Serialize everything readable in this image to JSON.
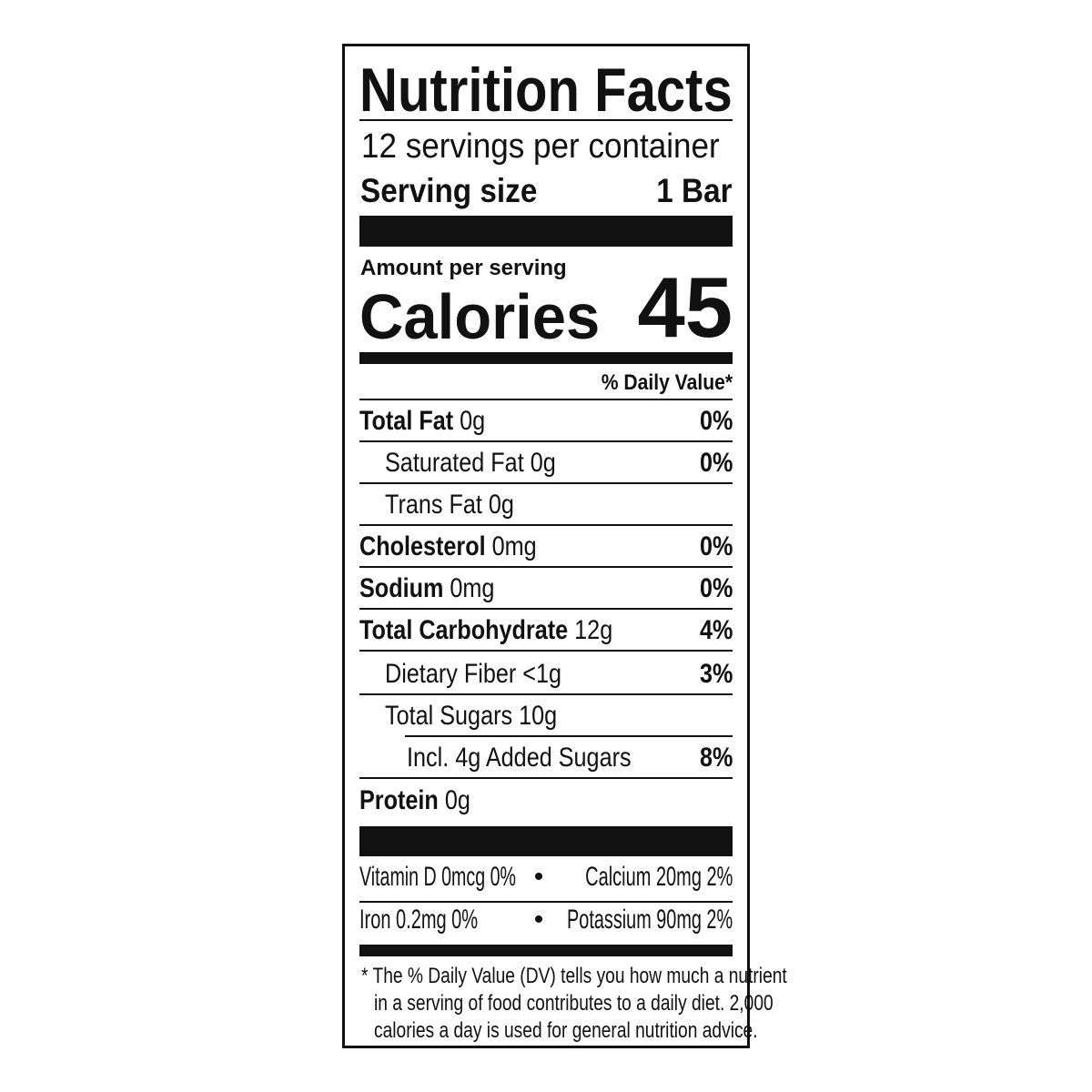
{
  "title": "Nutrition Facts",
  "servings_per_container": "12 servings per container",
  "serving_size": {
    "label": "Serving size",
    "value": "1 Bar"
  },
  "amount_per_serving": "Amount per serving",
  "calories": {
    "label": "Calories",
    "value": "45"
  },
  "daily_value_header": "% Daily Value*",
  "nutrients": [
    {
      "name": "Total Fat",
      "amount": "0g",
      "dv": "0%",
      "bold": true,
      "indent": 0
    },
    {
      "name": "Saturated Fat",
      "amount": "0g",
      "dv": "0%",
      "bold": false,
      "indent": 1
    },
    {
      "name": "Trans Fat",
      "amount": "0g",
      "dv": "",
      "bold": false,
      "indent": 1
    },
    {
      "name": "Cholesterol",
      "amount": "0mg",
      "dv": "0%",
      "bold": true,
      "indent": 0
    },
    {
      "name": "Sodium",
      "amount": "0mg",
      "dv": "0%",
      "bold": true,
      "indent": 0
    },
    {
      "name": "Total Carbohydrate",
      "amount": "12g",
      "dv": "4%",
      "bold": true,
      "indent": 0
    },
    {
      "name": "Dietary Fiber",
      "amount": "<1g",
      "dv": "3%",
      "bold": false,
      "indent": 1
    },
    {
      "name": "Total Sugars",
      "amount": "10g",
      "dv": "",
      "bold": false,
      "indent": 1
    },
    {
      "name": "Incl. 4g Added Sugars",
      "amount": "",
      "dv": "8%",
      "bold": false,
      "indent": 2
    },
    {
      "name": "Protein",
      "amount": "0g",
      "dv": "",
      "bold": true,
      "indent": 0
    }
  ],
  "micronutrients": [
    {
      "left": "Vitamin D 0mcg 0%",
      "right": "Calcium 20mg 2%"
    },
    {
      "left": "Iron 0.2mg 0%",
      "right": "Potassium 90mg 2%"
    }
  ],
  "bullet": "•",
  "footnote": [
    "* The % Daily Value (DV) tells you how much a nutrient",
    "in a serving of food contributes to a daily diet. 2,000",
    "calories a day is used for general nutrition advice."
  ]
}
